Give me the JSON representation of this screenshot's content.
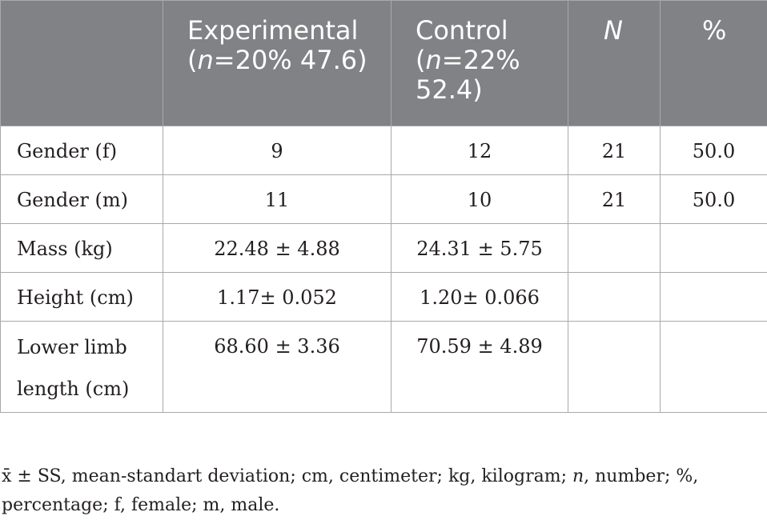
{
  "table": {
    "columns": [
      {
        "line1": "",
        "line2": "",
        "line3": ""
      },
      {
        "line1": "Experimental",
        "line2_italic": "n",
        "line2_rest": "=20% 47.6)",
        "line2_open": "("
      },
      {
        "line1": "Control",
        "line2_italic": "n",
        "line2_rest": "=22%",
        "line2_open": "(",
        "line3": "52.4)"
      },
      {
        "label": "N"
      },
      {
        "label": "%"
      }
    ],
    "rows": [
      {
        "label": "Gender (f)",
        "experimental": "9",
        "control": "12",
        "n": "21",
        "percent": "50.0"
      },
      {
        "label": "Gender (m)",
        "experimental": "11",
        "control": "10",
        "n": "21",
        "percent": "50.0"
      },
      {
        "label": "Mass (kg)",
        "experimental": "22.48 ± 4.88",
        "control": "24.31 ± 5.75",
        "n": "",
        "percent": ""
      },
      {
        "label": "Height (cm)",
        "experimental": "1.17± 0.052",
        "control": "1.20± 0.066",
        "n": "",
        "percent": ""
      },
      {
        "label_line1": "Lower limb",
        "label_line2": "length (cm)",
        "experimental": "68.60 ± 3.36",
        "control": "70.59 ± 4.89",
        "n": "",
        "percent": ""
      }
    ]
  },
  "footnote": {
    "part1": "x̄ ± SS, mean-standart deviation; cm, centimeter; kg, kilogram; ",
    "italic_n": "n",
    "part2": ", number; %, percentage; f, female; m, male."
  },
  "colors": {
    "header_bg": "#808285",
    "header_text": "#ffffff",
    "border": "#a7a9ac",
    "body_text": "#231f20"
  }
}
